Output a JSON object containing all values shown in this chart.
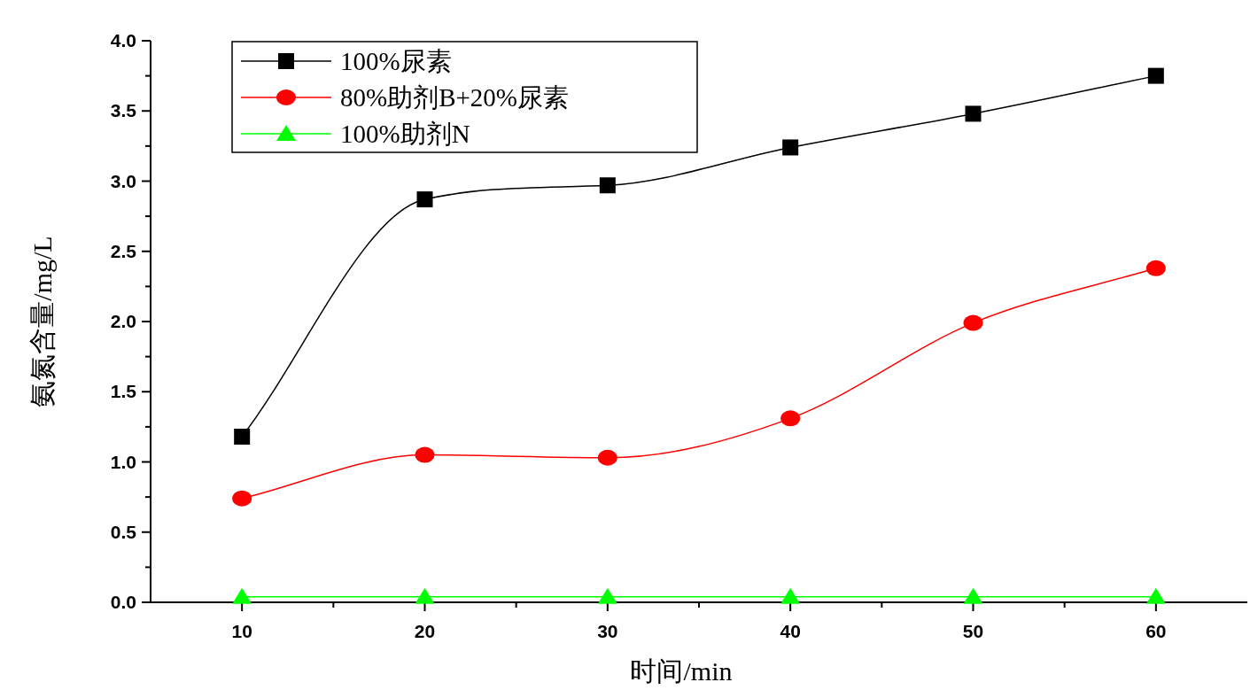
{
  "chart_data": {
    "type": "line",
    "xlabel": "时间/min",
    "ylabel": "氨氮含量/mg/L",
    "x": [
      10,
      20,
      30,
      40,
      50,
      60
    ],
    "series": [
      {
        "name": "100%尿素",
        "color": "#000000",
        "marker": "square",
        "values": [
          1.18,
          2.87,
          2.97,
          3.24,
          3.48,
          3.75
        ]
      },
      {
        "name": "80%助剂B+20%尿素",
        "color": "#ff0000",
        "marker": "circle",
        "values": [
          0.74,
          1.05,
          1.03,
          1.31,
          1.99,
          2.38
        ]
      },
      {
        "name": "100%助剂N",
        "color": "#00ff00",
        "marker": "triangle",
        "values": [
          0.04,
          0.04,
          0.04,
          0.04,
          0.04,
          0.04
        ]
      }
    ],
    "xlim": [
      5,
      65
    ],
    "xticks": [
      10,
      {
        "value": 15,
        "label": null
      },
      20,
      {
        "value": 25,
        "label": null
      },
      30,
      {
        "value": 35,
        "label": null
      },
      40,
      {
        "value": 45,
        "label": null
      },
      50,
      {
        "value": 55,
        "label": null
      },
      60
    ],
    "ylim": [
      0,
      4
    ],
    "yticks": [
      {
        "value": 0,
        "label": "0.0"
      },
      {
        "value": 0.25,
        "label": null
      },
      {
        "value": 0.5,
        "label": "0.5"
      },
      {
        "value": 0.75,
        "label": null
      },
      {
        "value": 1,
        "label": "1.0"
      },
      {
        "value": 1.25,
        "label": null
      },
      {
        "value": 1.5,
        "label": "1.5"
      },
      {
        "value": 1.75,
        "label": null
      },
      {
        "value": 2,
        "label": "2.0"
      },
      {
        "value": 2.25,
        "label": null
      },
      {
        "value": 2.5,
        "label": "2.5"
      },
      {
        "value": 2.75,
        "label": null
      },
      {
        "value": 3,
        "label": "3.0"
      },
      {
        "value": 3.25,
        "label": null
      },
      {
        "value": 3.5,
        "label": "3.5"
      },
      {
        "value": 3.75,
        "label": null
      },
      {
        "value": 4,
        "label": "4.0"
      }
    ],
    "grid": false,
    "legend": "top left",
    "line_style": "solid"
  }
}
